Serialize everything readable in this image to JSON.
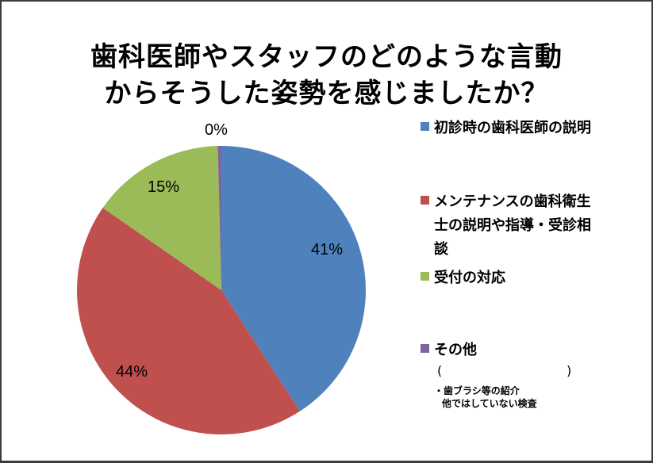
{
  "chart_data": {
    "type": "pie",
    "title": "歯科医師やスタッフのどのような言動からそうした姿勢を感じましたか？",
    "title_lines": [
      "歯科医師やスタッフのどのような言動",
      "からそうした姿勢を感じましたか？"
    ],
    "categories": [
      "初診時の歯科医師の説明",
      "メンテナンスの歯科衛生士の説明や指導・受診相談",
      "受付の対応",
      "その他"
    ],
    "values": [
      41,
      44,
      15,
      0
    ],
    "data_labels": [
      "41%",
      "44%",
      "15%",
      "0%"
    ],
    "colors": [
      "#4f81bd",
      "#c0504d",
      "#9bbb59",
      "#8064a2"
    ],
    "legend_position": "right",
    "start_angle": "12 o'clock, clockwise"
  },
  "legend": {
    "items": [
      {
        "label": "初診時の歯科医師の説明",
        "color": "#4f81bd"
      },
      {
        "label": "メンテナンスの歯科衛生士の説明や指導・受診相談",
        "color": "#c0504d"
      },
      {
        "label": "受付の対応",
        "color": "#9bbb59"
      },
      {
        "label": "その他",
        "color": "#8064a2"
      }
    ],
    "other_paren_open": "(",
    "other_paren_close": ")",
    "other_note_line1": "・歯ブラシ等の紹介",
    "other_note_line2": "他ではしていない検査"
  }
}
